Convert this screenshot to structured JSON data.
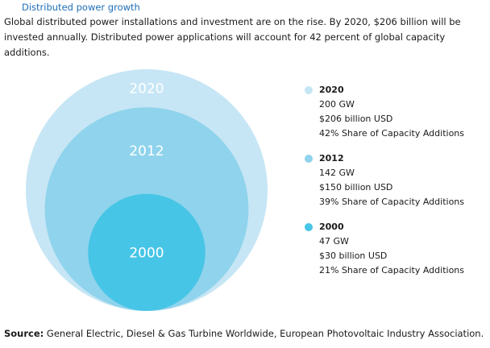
{
  "chart_data": {
    "type": "bubble",
    "title": "Distributed power growth",
    "subtitle": "Global distributed power installations and investment are on the rise. By 2020, $206 billion will be invested annually. Distributed power applications will account for 42 percent of global capacity additions.",
    "series": [
      {
        "name": "2020",
        "year": "2020",
        "capacity_gw": 200,
        "capacity_text": "200 GW",
        "investment_text": "$206 billion USD",
        "share_text": "42% Share of Capacity Additions",
        "share_pct": 42,
        "color": "#c6e6f5"
      },
      {
        "name": "2012",
        "year": "2012",
        "capacity_gw": 142,
        "capacity_text": "142 GW",
        "investment_text": "$150 billion USD",
        "share_text": "39% Share of Capacity Additions",
        "share_pct": 39,
        "color": "#8fd3ec"
      },
      {
        "name": "2000",
        "year": "2000",
        "capacity_gw": 47,
        "capacity_text": "47 GW",
        "investment_text": "$30 billion USD",
        "share_text": "21% Share of Capacity Additions",
        "share_pct": 21,
        "color": "#47c5e6"
      }
    ],
    "legend_position": "right",
    "source_label": "Source:",
    "source_text": "General Electric, Diesel & Gas Turbine Worldwide, European Photovoltaic Industry Association."
  }
}
